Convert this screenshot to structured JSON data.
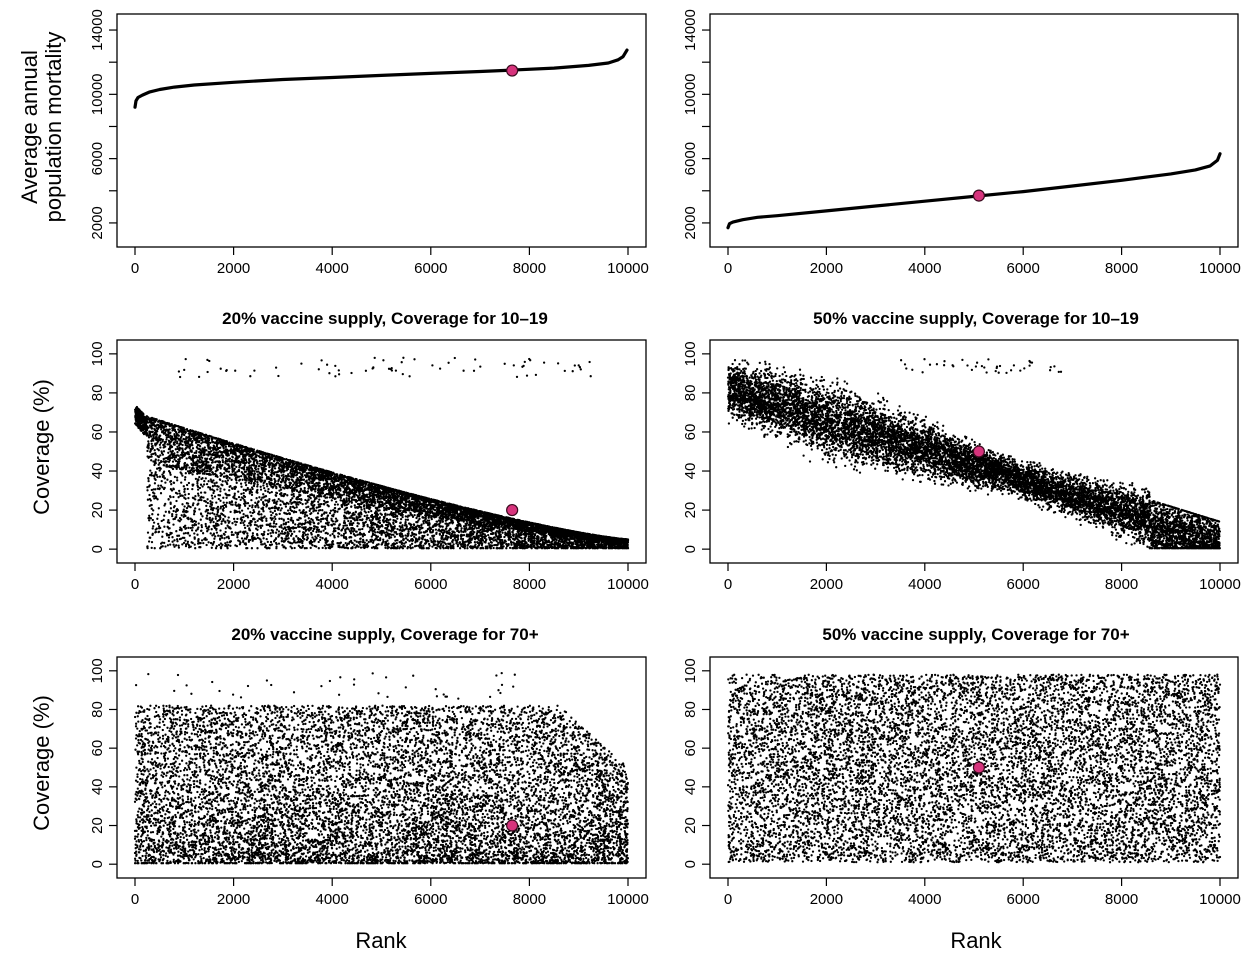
{
  "figure": {
    "xlabel": "Rank",
    "ylabel_top": [
      "Average annual",
      "population mortality"
    ],
    "ylabel_cov": "Coverage (%)"
  },
  "chart_data": [
    {
      "id": "mort20",
      "type": "line",
      "title": "",
      "xlim": [
        0,
        10000
      ],
      "ylim": [
        1000,
        14500
      ],
      "xticks": [
        0,
        2000,
        4000,
        6000,
        8000,
        10000
      ],
      "yticks": [
        2000,
        6000,
        10000,
        14000
      ],
      "yticks_minor": [
        4000,
        8000,
        12000
      ],
      "curve": [
        [
          0,
          9200
        ],
        [
          20,
          9600
        ],
        [
          60,
          9800
        ],
        [
          150,
          9950
        ],
        [
          300,
          10150
        ],
        [
          500,
          10300
        ],
        [
          800,
          10450
        ],
        [
          1200,
          10580
        ],
        [
          2000,
          10750
        ],
        [
          3000,
          10920
        ],
        [
          4000,
          11050
        ],
        [
          5000,
          11180
        ],
        [
          6000,
          11300
        ],
        [
          7000,
          11420
        ],
        [
          7600,
          11500
        ],
        [
          8500,
          11630
        ],
        [
          9200,
          11800
        ],
        [
          9600,
          11950
        ],
        [
          9800,
          12150
        ],
        [
          9900,
          12350
        ],
        [
          9980,
          12750
        ]
      ],
      "highlight": [
        7650,
        11480
      ],
      "highlight_color": "#d6337c"
    },
    {
      "id": "mort50",
      "type": "line",
      "title": "",
      "xlim": [
        0,
        10000
      ],
      "ylim": [
        1000,
        14500
      ],
      "xticks": [
        0,
        2000,
        4000,
        6000,
        8000,
        10000
      ],
      "yticks": [
        2000,
        6000,
        10000,
        14000
      ],
      "yticks_minor": [
        4000,
        8000,
        12000
      ],
      "curve": [
        [
          0,
          1700
        ],
        [
          30,
          1950
        ],
        [
          100,
          2050
        ],
        [
          300,
          2200
        ],
        [
          600,
          2350
        ],
        [
          1000,
          2450
        ],
        [
          2000,
          2750
        ],
        [
          3000,
          3050
        ],
        [
          4000,
          3350
        ],
        [
          5000,
          3650
        ],
        [
          6000,
          3950
        ],
        [
          7000,
          4300
        ],
        [
          8000,
          4650
        ],
        [
          9000,
          5050
        ],
        [
          9500,
          5300
        ],
        [
          9800,
          5550
        ],
        [
          9950,
          5900
        ],
        [
          10000,
          6300
        ]
      ],
      "highlight": [
        5100,
        3700
      ],
      "highlight_color": "#d6337c"
    },
    {
      "id": "cov20_1019",
      "type": "scatter",
      "title": "20% vaccine supply, Coverage for 10–19",
      "xlim": [
        0,
        10000
      ],
      "ylim": [
        -3,
        103
      ],
      "xticks": [
        0,
        2000,
        4000,
        6000,
        8000,
        10000
      ],
      "yticks": [
        0,
        20,
        40,
        60,
        80,
        100
      ],
      "n_points": 10000,
      "pattern": "dense decaying band from ~70 at rank 0 to ~5 at rank 10000, sparse points near 90–100",
      "highlight": [
        7650,
        20
      ],
      "highlight_color": "#d6337c"
    },
    {
      "id": "cov50_1019",
      "type": "scatter",
      "title": "50% vaccine supply, Coverage for 10–19",
      "xlim": [
        0,
        10000
      ],
      "ylim": [
        -3,
        103
      ],
      "xticks": [
        0,
        2000,
        4000,
        6000,
        8000,
        10000
      ],
      "yticks": [
        0,
        20,
        40,
        60,
        80,
        100
      ],
      "n_points": 10000,
      "pattern": "dense band declining from ~82 at rank 0 to ~5 at rank 10000",
      "highlight": [
        5100,
        50
      ],
      "highlight_color": "#d6337c"
    },
    {
      "id": "cov20_70",
      "type": "scatter",
      "title": "20% vaccine supply, Coverage for 70+",
      "xlim": [
        0,
        10000
      ],
      "ylim": [
        -3,
        103
      ],
      "xticks": [
        0,
        2000,
        4000,
        6000,
        8000,
        10000
      ],
      "yticks": [
        0,
        20,
        40,
        60,
        80,
        100
      ],
      "n_points": 10000,
      "pattern": "spread 0–80, denser near 0, upper envelope falling toward 50 at rank 10000",
      "highlight": [
        7650,
        20
      ],
      "highlight_color": "#d6337c"
    },
    {
      "id": "cov50_70",
      "type": "scatter",
      "title": "50% vaccine supply, Coverage for 70+",
      "xlim": [
        0,
        10000
      ],
      "ylim": [
        -3,
        103
      ],
      "xticks": [
        0,
        2000,
        4000,
        6000,
        8000,
        10000
      ],
      "yticks": [
        0,
        20,
        40,
        60,
        80,
        100
      ],
      "n_points": 10000,
      "pattern": "roughly uniform spread 0–100 across all ranks",
      "highlight": [
        5100,
        50
      ],
      "highlight_color": "#d6337c"
    }
  ]
}
